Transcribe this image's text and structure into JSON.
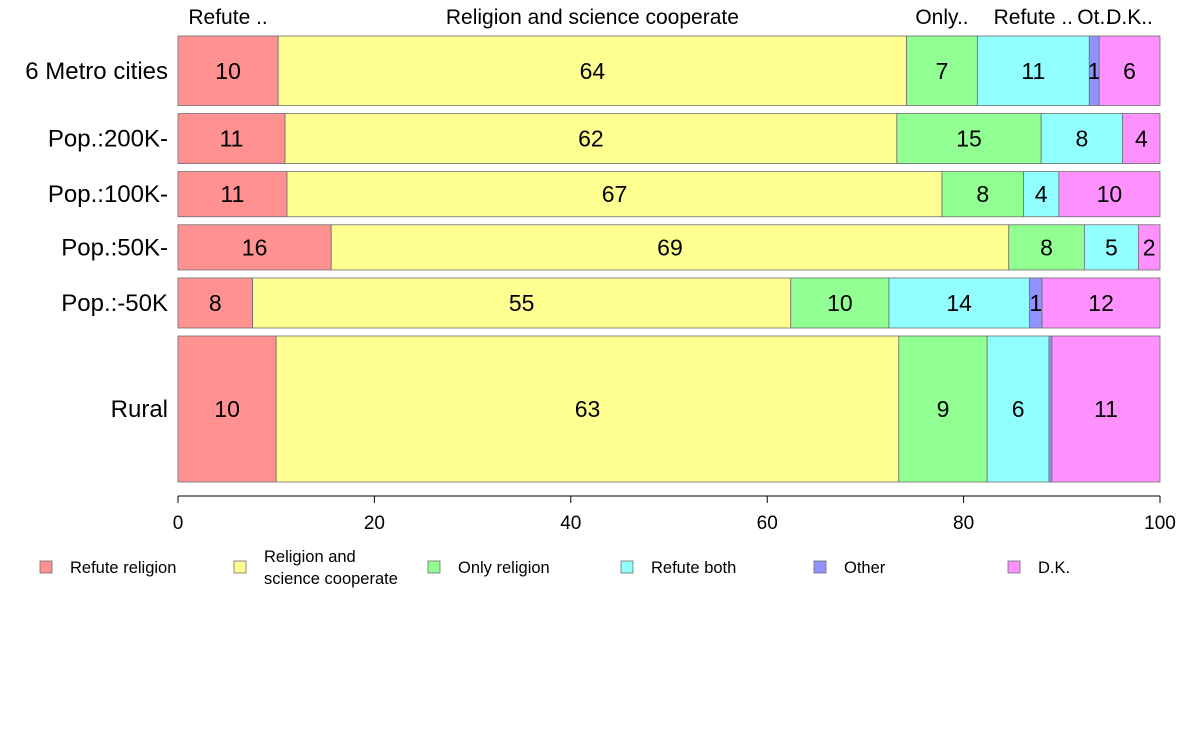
{
  "chart_data": {
    "type": "bar",
    "orientation": "horizontal",
    "stacked": true,
    "categories": [
      "6 Metro cities",
      "Pop.:200K-",
      "Pop.:100K-",
      "Pop.:50K-",
      "Pop.:-50K",
      "Rural"
    ],
    "category_weights": [
      1.0,
      0.72,
      0.65,
      0.65,
      0.72,
      2.1
    ],
    "series": [
      {
        "name": "Refute religion",
        "top_label": "Refute ..",
        "color": "#FF9191",
        "values": [
          10.2,
          10.9,
          11.1,
          15.6,
          7.6,
          10.0
        ],
        "labels": [
          "10",
          "11",
          "11",
          "16",
          "8",
          "10"
        ]
      },
      {
        "name": "Religion and science cooperate",
        "top_label": "Religion and science cooperate",
        "color": "#FFFF91",
        "values": [
          64.0,
          62.3,
          66.7,
          69.0,
          54.8,
          63.4
        ],
        "labels": [
          "64",
          "62",
          "67",
          "69",
          "55",
          "63"
        ]
      },
      {
        "name": "Only religion",
        "top_label": "Only..",
        "color": "#91FF91",
        "values": [
          7.2,
          14.7,
          8.3,
          7.7,
          10.0,
          9.0
        ],
        "labels": [
          "7",
          "15",
          "8",
          "8",
          "10",
          "9"
        ]
      },
      {
        "name": "Refute both",
        "top_label": "Refute ..",
        "color": "#91FFFF",
        "values": [
          11.4,
          8.3,
          3.6,
          5.5,
          14.3,
          6.3
        ],
        "labels": [
          "11",
          "8",
          "4",
          "5",
          "14",
          "6"
        ]
      },
      {
        "name": "Other",
        "top_label": "Ot..",
        "color": "#9191FF",
        "values": [
          1.0,
          0.0,
          0.0,
          0.0,
          1.3,
          0.3
        ],
        "labels": [
          "1",
          "",
          "",
          "",
          "1",
          ""
        ]
      },
      {
        "name": "D.K.",
        "top_label": "D.K..",
        "color": "#FF91FF",
        "values": [
          6.2,
          3.8,
          10.3,
          2.2,
          12.0,
          11.0
        ],
        "labels": [
          "6",
          "4",
          "10",
          "2",
          "12",
          "11"
        ]
      }
    ],
    "xlim": [
      0,
      100
    ],
    "xticks": [
      "0",
      "20",
      "40",
      "60",
      "80",
      "100"
    ],
    "legend": {
      "placement": "bottom",
      "entries": [
        {
          "lines": [
            "Refute religion"
          ],
          "color": "#FF9191"
        },
        {
          "lines": [
            "Religion and",
            "science cooperate"
          ],
          "color": "#FFFF91"
        },
        {
          "lines": [
            "Only religion"
          ],
          "color": "#91FF91"
        },
        {
          "lines": [
            "Refute both"
          ],
          "color": "#91FFFF"
        },
        {
          "lines": [
            "Other"
          ],
          "color": "#9191FF"
        },
        {
          "lines": [
            "D.K."
          ],
          "color": "#FF91FF"
        }
      ]
    },
    "grid": false
  }
}
